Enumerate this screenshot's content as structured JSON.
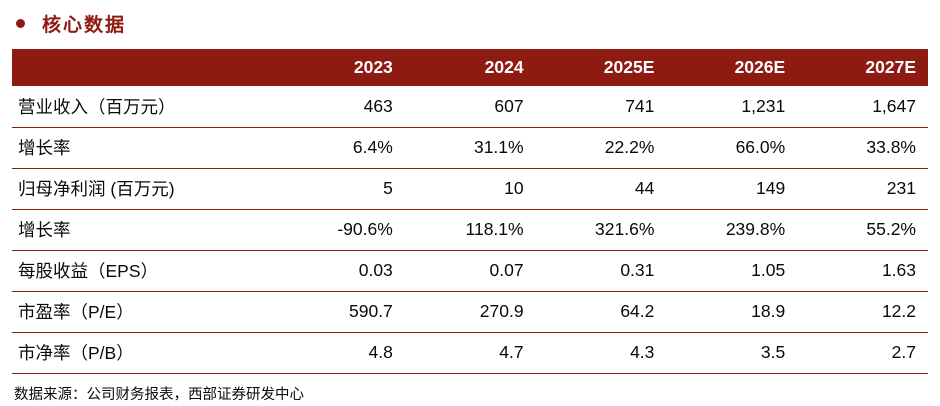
{
  "page": {
    "title": "核心数据",
    "source_note": "数据来源：公司财务报表，西部证券研发中心"
  },
  "colors": {
    "accent_red": "#8e1b11",
    "header_text": "#ffffff",
    "body_text": "#0a0a0a"
  },
  "chart_data": {
    "type": "table",
    "title": "核心数据",
    "columns": [
      "",
      "2023",
      "2024",
      "2025E",
      "2026E",
      "2027E"
    ],
    "rows": [
      {
        "label": "营业收入（百万元）",
        "values": [
          "463",
          "607",
          "741",
          "1,231",
          "1,647"
        ]
      },
      {
        "label": "增长率",
        "values": [
          "6.4%",
          "31.1%",
          "22.2%",
          "66.0%",
          "33.8%"
        ]
      },
      {
        "label": "归母净利润 (百万元)",
        "values": [
          "5",
          "10",
          "44",
          "149",
          "231"
        ]
      },
      {
        "label": "增长率",
        "values": [
          "-90.6%",
          "118.1%",
          "321.6%",
          "239.8%",
          "55.2%"
        ]
      },
      {
        "label": "每股收益（EPS）",
        "values": [
          "0.03",
          "0.07",
          "0.31",
          "1.05",
          "1.63"
        ]
      },
      {
        "label": "市盈率（P/E）",
        "values": [
          "590.7",
          "270.9",
          "64.2",
          "18.9",
          "12.2"
        ]
      },
      {
        "label": "市净率（P/B）",
        "values": [
          "4.8",
          "4.7",
          "4.3",
          "3.5",
          "2.7"
        ]
      }
    ]
  }
}
